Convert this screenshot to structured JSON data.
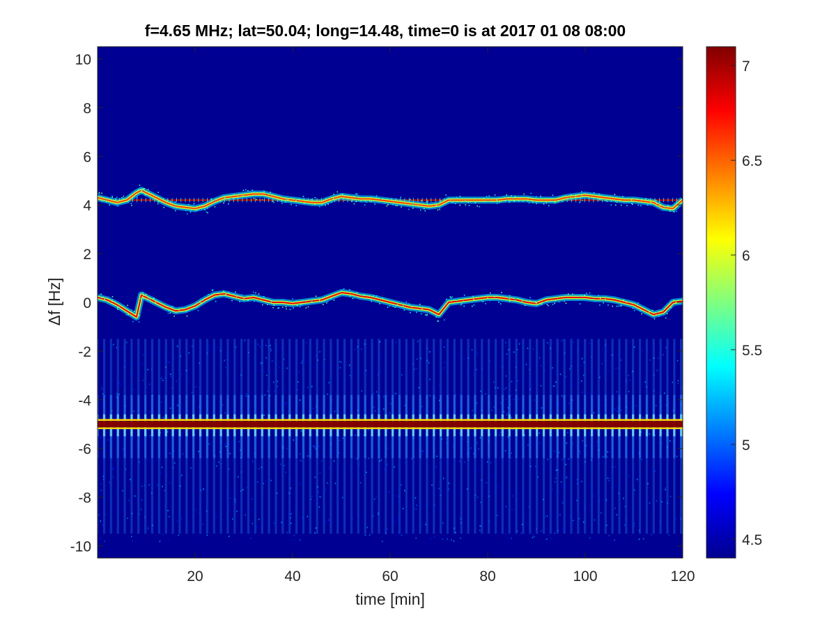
{
  "chart_data": {
    "type": "heatmap",
    "title": "f=4.65 MHz;  lat=50.04; long=14.48, time=0 is at 2017 01 08 08:00",
    "xlabel": "time [min]",
    "ylabel": "Δf [Hz]",
    "xlim": [
      0,
      120
    ],
    "ylim": [
      -10.5,
      10.5
    ],
    "xticks": [
      20,
      40,
      60,
      80,
      100,
      120
    ],
    "yticks": [
      -10,
      -8,
      -6,
      -4,
      -2,
      0,
      2,
      4,
      6,
      8,
      10
    ],
    "colorbar": {
      "range": [
        4.4,
        7.1
      ],
      "ticks": [
        4.5,
        5,
        5.5,
        6,
        6.5,
        7
      ],
      "colormap": "jet"
    },
    "background_value": 4.45,
    "reference_lines": [
      {
        "y": 4.2,
        "value": 6.9
      },
      {
        "y": -5.0,
        "value": 7.1
      }
    ],
    "traces": [
      {
        "name": "",
        "x": [
          0,
          2,
          4,
          6,
          8,
          9,
          10,
          12,
          14,
          16,
          18,
          20,
          22,
          24,
          26,
          28,
          30,
          32,
          34,
          36,
          38,
          40,
          42,
          44,
          46,
          48,
          50,
          52,
          54,
          56,
          58,
          60,
          62,
          64,
          66,
          68,
          70,
          72,
          74,
          76,
          78,
          80,
          82,
          84,
          86,
          88,
          90,
          92,
          94,
          96,
          98,
          100,
          102,
          104,
          106,
          108,
          110,
          112,
          114,
          116,
          118,
          120
        ],
        "y": [
          4.3,
          4.2,
          4.1,
          4.2,
          4.5,
          4.6,
          4.5,
          4.3,
          4.1,
          3.95,
          3.9,
          3.85,
          3.95,
          4.15,
          4.3,
          4.35,
          4.4,
          4.45,
          4.45,
          4.35,
          4.25,
          4.2,
          4.15,
          4.1,
          4.1,
          4.25,
          4.35,
          4.3,
          4.25,
          4.25,
          4.2,
          4.15,
          4.1,
          4.05,
          4.0,
          3.95,
          4.0,
          4.2,
          4.2,
          4.2,
          4.2,
          4.2,
          4.2,
          4.25,
          4.25,
          4.25,
          4.2,
          4.2,
          4.2,
          4.3,
          4.35,
          4.4,
          4.35,
          4.3,
          4.25,
          4.2,
          4.2,
          4.15,
          4.1,
          3.9,
          3.85,
          4.2
        ],
        "value": 6.6
      },
      {
        "name": "",
        "x": [
          0,
          2,
          4,
          6,
          8,
          9,
          10,
          12,
          14,
          16,
          18,
          20,
          22,
          24,
          26,
          28,
          30,
          32,
          34,
          36,
          38,
          40,
          42,
          44,
          46,
          48,
          50,
          52,
          54,
          56,
          58,
          60,
          62,
          64,
          66,
          68,
          70,
          72,
          74,
          76,
          78,
          80,
          82,
          84,
          86,
          88,
          90,
          92,
          94,
          96,
          98,
          100,
          102,
          104,
          106,
          108,
          110,
          112,
          114,
          116,
          118,
          120
        ],
        "y": [
          0.2,
          0.1,
          -0.1,
          -0.35,
          -0.6,
          0.3,
          0.2,
          0.0,
          -0.2,
          -0.35,
          -0.3,
          -0.15,
          0.1,
          0.3,
          0.35,
          0.25,
          0.15,
          0.2,
          0.1,
          0.0,
          0.0,
          -0.05,
          0.0,
          0.05,
          0.1,
          0.25,
          0.4,
          0.35,
          0.25,
          0.2,
          0.1,
          0.0,
          -0.1,
          -0.2,
          -0.25,
          -0.3,
          -0.5,
          0.0,
          0.05,
          0.1,
          0.15,
          0.2,
          0.2,
          0.15,
          0.1,
          0.0,
          -0.05,
          0.1,
          0.15,
          0.2,
          0.2,
          0.2,
          0.15,
          0.15,
          0.1,
          0.0,
          -0.1,
          -0.3,
          -0.5,
          -0.4,
          0.0,
          0.05
        ],
        "value": 6.8
      }
    ]
  }
}
